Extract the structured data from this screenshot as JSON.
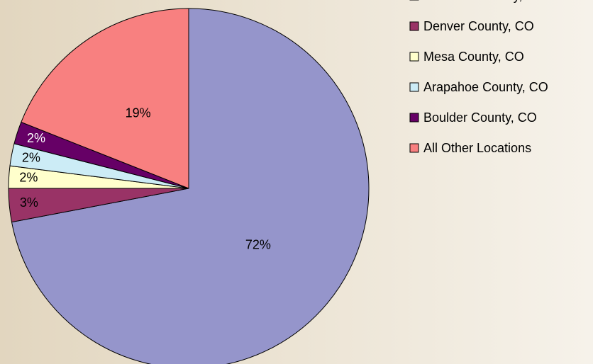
{
  "chart_data": {
    "type": "pie",
    "categories": [
      "Jefferson County, CO",
      "Denver County, CO",
      "Mesa County, CO",
      "Arapahoe County, CO",
      "Boulder County, CO",
      "All Other Locations"
    ],
    "values": [
      72,
      3,
      2,
      2,
      2,
      19
    ],
    "value_labels": [
      "72%",
      "3%",
      "2%",
      "2%",
      "2%",
      "19%"
    ],
    "colors": [
      "#9595cb",
      "#993366",
      "#ffffcc",
      "#ccecf6",
      "#660066",
      "#f88080"
    ],
    "legend": "right"
  }
}
